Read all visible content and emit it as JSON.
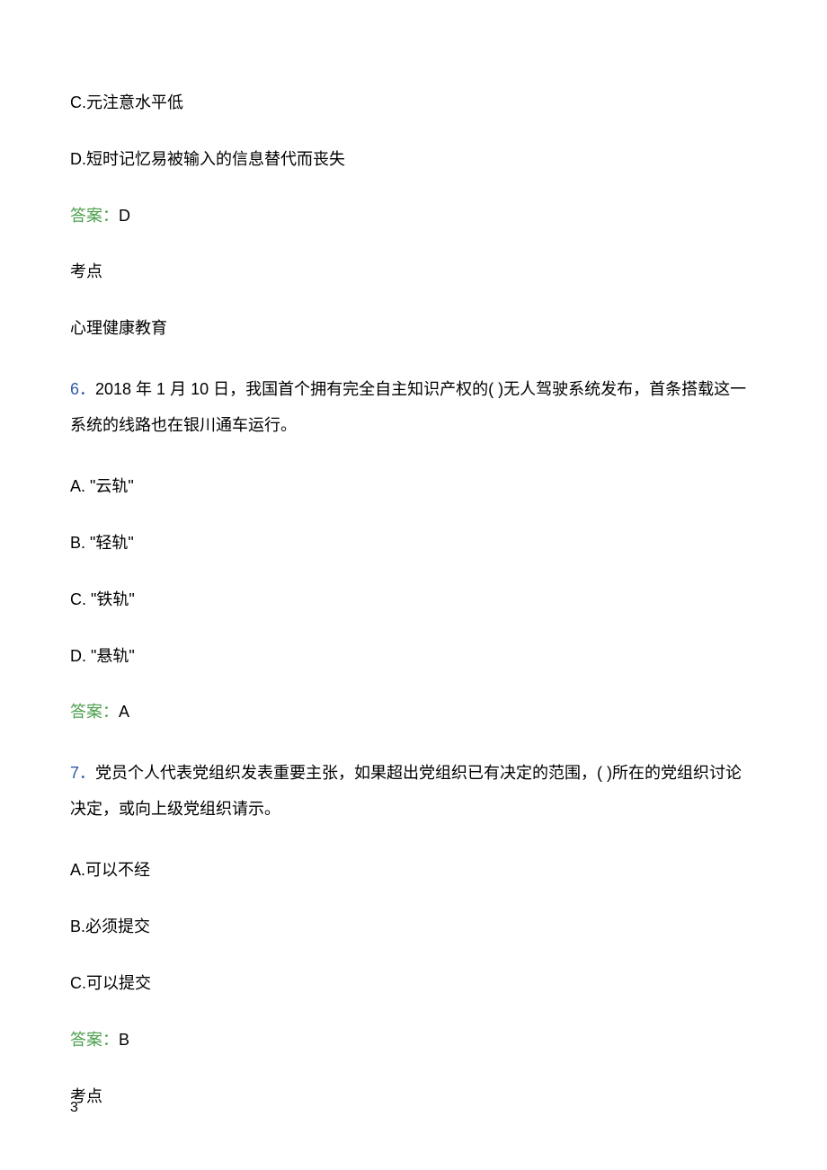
{
  "colors": {
    "text": "#000000",
    "answer_label": "#4d9e4d",
    "question_number": "#2b5ba8",
    "background": "#ffffff"
  },
  "typography": {
    "body_fontsize": 18,
    "page_number_fontsize": 16,
    "line_spacing": 34,
    "font_family": "Microsoft YaHei"
  },
  "page": {
    "number": "3"
  },
  "q5_tail": {
    "option_c": "C.元注意水平低",
    "option_d": "D.短时记忆易被输入的信息替代而丧失",
    "answer_label": "答案：",
    "answer_value": "D",
    "topic_label": "考点",
    "topic_value": "心理健康教育"
  },
  "q6": {
    "number": "6．",
    "stem": "2018 年 1 月 10 日，我国首个拥有完全自主知识产权的( )无人驾驶系统发布，首条搭载这一系统的线路也在银川通车运行。",
    "option_a": "A. \"云轨\"",
    "option_b": "B. \"轻轨\"",
    "option_c": "C. \"铁轨\"",
    "option_d": "D. \"悬轨\"",
    "answer_label": "答案：",
    "answer_value": "A"
  },
  "q7": {
    "number": "7．",
    "stem": "党员个人代表党组织发表重要主张，如果超出党组织已有决定的范围，( )所在的党组织讨论决定，或向上级党组织请示。",
    "option_a": "A.可以不经",
    "option_b": "B.必须提交",
    "option_c": "C.可以提交",
    "answer_label": "答案：",
    "answer_value": "B",
    "topic_label": "考点"
  }
}
